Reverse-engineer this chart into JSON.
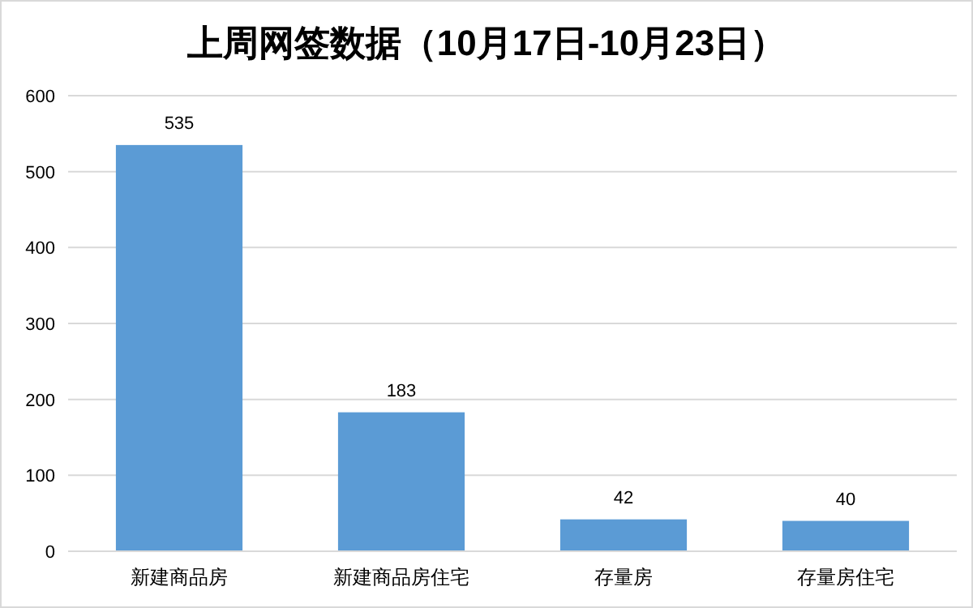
{
  "chart_data": {
    "type": "bar",
    "title": "上周网签数据（10月17日-10月23日）",
    "categories": [
      "新建商品房",
      "新建商品房住宅",
      "存量房",
      "存量房住宅"
    ],
    "values": [
      535,
      183,
      42,
      40
    ],
    "color": "#5b9bd5",
    "ylim": [
      0,
      600
    ],
    "yticks": [
      0,
      100,
      200,
      300,
      400,
      500,
      600
    ],
    "grid": "y",
    "data_labels": true
  }
}
